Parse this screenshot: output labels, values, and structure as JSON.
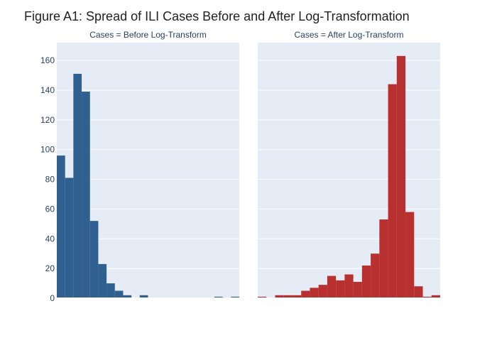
{
  "figure": {
    "title": "Figure A1: Spread of ILI Cases Before and After Log-Transformation"
  },
  "chart_data": [
    {
      "type": "bar",
      "title": "Cases = Before Log-Transform",
      "color": "#2f6090",
      "values": [
        96,
        81,
        151,
        139,
        52,
        23,
        10,
        5,
        2,
        0,
        2,
        0,
        0,
        0,
        0,
        0,
        0,
        0,
        0,
        1,
        0,
        1
      ],
      "ylim": [
        0,
        172
      ],
      "yticks": [
        0,
        20,
        40,
        60,
        80,
        100,
        120,
        140,
        160
      ],
      "grid": true,
      "xlabel": "",
      "ylabel": ""
    },
    {
      "type": "bar",
      "title": "Cases = After Log-Transform",
      "color": "#b83030",
      "values": [
        1,
        0,
        2,
        2,
        2,
        5,
        7,
        9,
        15,
        12,
        16,
        11,
        22,
        30,
        53,
        144,
        163,
        58,
        8,
        1,
        2
      ],
      "ylim": [
        0,
        172
      ],
      "yticks": [
        0,
        20,
        40,
        60,
        80,
        100,
        120,
        140,
        160
      ],
      "grid": true,
      "xlabel": "",
      "ylabel": ""
    }
  ]
}
